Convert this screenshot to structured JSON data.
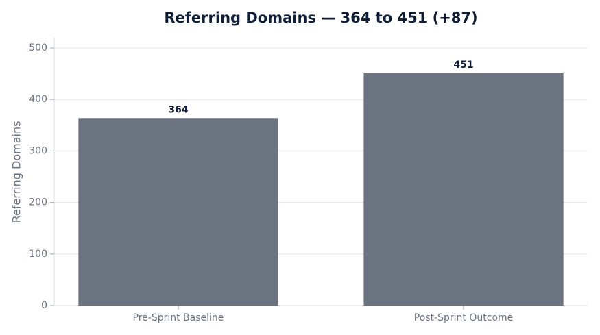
{
  "chart_data": {
    "type": "bar",
    "title": "Referring Domains — 364 to 451 (+87)",
    "y_label": "Referring Domains",
    "categories": [
      "Pre-Sprint Baseline",
      "Post-Sprint Outcome"
    ],
    "values": [
      364,
      451
    ],
    "color": "#6b7280",
    "ylim": [
      0,
      520
    ],
    "yticks": [
      0,
      100,
      200,
      300,
      400,
      500
    ],
    "grid": true
  }
}
